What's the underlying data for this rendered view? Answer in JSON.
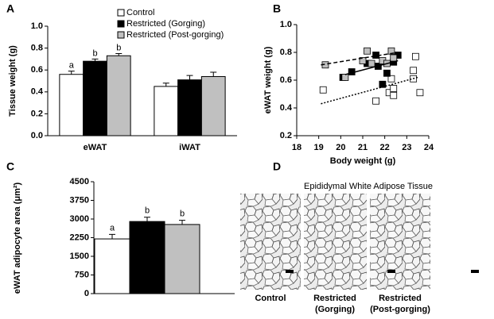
{
  "chart_data": [
    {
      "type": "bar",
      "panel": "A",
      "ylabel": "Tissue  weight (g)",
      "categories": [
        "eWAT",
        "iWAT"
      ],
      "series": [
        {
          "name": "Control",
          "color": "#ffffff",
          "values": [
            0.56,
            0.45
          ],
          "errors": [
            0.03,
            0.03
          ],
          "letters": [
            "a",
            null
          ]
        },
        {
          "name": "Restricted (Gorging)",
          "color": "#000000",
          "values": [
            0.68,
            0.51
          ],
          "errors": [
            0.02,
            0.04
          ],
          "letters": [
            "b",
            null
          ]
        },
        {
          "name": "Restricted (Post-gorging)",
          "color": "#c0c0c0",
          "values": [
            0.73,
            0.54
          ],
          "errors": [
            0.02,
            0.04
          ],
          "letters": [
            "b",
            null
          ]
        }
      ],
      "ylim": [
        0,
        1
      ],
      "yticks": [
        {
          "value": 0,
          "label": "0.0"
        },
        0.2,
        0.4,
        0.6,
        0.8,
        {
          "value": 1,
          "label": "1.0"
        }
      ],
      "legend": "top"
    },
    {
      "type": "scatter",
      "panel": "B",
      "xlabel": "Body weight (g)",
      "ylabel": "eWAT weight (g)",
      "series": [
        {
          "color": "#ffffff",
          "line_style": "dotted",
          "x": [
            19.2,
            21.6,
            22.2,
            22.4,
            22.4,
            23.3,
            23.4,
            23.3,
            23.6,
            22.3
          ],
          "values": [
            0.53,
            0.45,
            0.51,
            0.49,
            0.54,
            0.67,
            0.77,
            0.61,
            0.51,
            0.61
          ],
          "trend": {
            "x": [
              19.1,
              23.5
            ],
            "y": [
              0.43,
              0.62
            ]
          }
        },
        {
          "color": "#000000",
          "line_style": "solid",
          "x": [
            20.1,
            20.5,
            21.2,
            21.7,
            21.9,
            22.1,
            22.6,
            22.4,
            21.6
          ],
          "values": [
            0.62,
            0.66,
            0.72,
            0.7,
            0.57,
            0.65,
            0.78,
            0.73,
            0.78
          ],
          "trend": {
            "x": [
              20.2,
              22.6
            ],
            "y": [
              0.64,
              0.74
            ]
          }
        },
        {
          "color": "#c0c0c0",
          "line_style": "dashed",
          "x": [
            19.3,
            20.2,
            21.2,
            21.4,
            21.9,
            22.3,
            22.4,
            22.1,
            21.0
          ],
          "values": [
            0.71,
            0.62,
            0.81,
            0.72,
            0.74,
            0.81,
            0.76,
            0.72,
            0.74
          ],
          "trend": {
            "x": [
              19.1,
              22.6
            ],
            "y": [
              0.71,
              0.8
            ]
          }
        }
      ],
      "xlim": [
        18,
        24
      ],
      "xticks": [
        18,
        19,
        20,
        21,
        22,
        23,
        24
      ],
      "ylim": [
        0.2,
        1
      ],
      "yticks": [
        0.2,
        0.4,
        0.6,
        0.8,
        {
          "value": 1,
          "label": "1.0"
        }
      ]
    },
    {
      "type": "bar",
      "panel": "C",
      "ylabel": "eWAT adipocyte area (μm²)",
      "values": [
        2200,
        2900,
        2780
      ],
      "errors": [
        180,
        170,
        170
      ],
      "letters": [
        "a",
        "b",
        "b"
      ],
      "colors": [
        "#ffffff",
        "#000000",
        "#c0c0c0"
      ],
      "ylim": [
        0,
        4500
      ],
      "yticks": [
        0,
        750,
        1500,
        2250,
        3000,
        3750,
        4500
      ]
    }
  ],
  "image_panel": {
    "panel": "D",
    "title": "Epididymal White Adipose Tissue",
    "captions": [
      [
        "Control"
      ],
      [
        "Restricted",
        "(Gorging)"
      ],
      [
        "Restricted",
        "(Post-gorging)"
      ]
    ]
  }
}
